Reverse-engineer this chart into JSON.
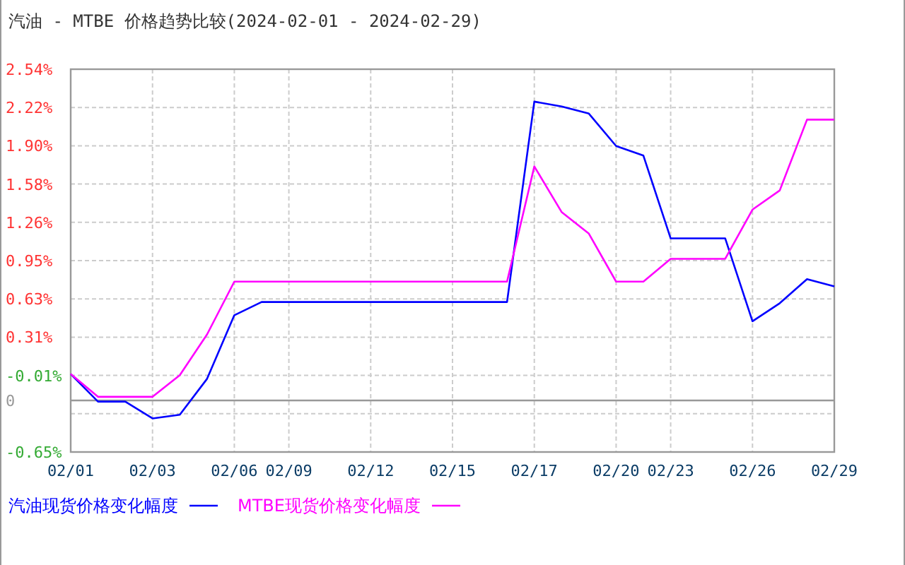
{
  "chart_data": {
    "type": "line",
    "title": "汽油 - MTBE 价格趋势比较(2024-02-01 - 2024-02-29)",
    "categories": [
      "02/01",
      null,
      null,
      "02/03",
      null,
      null,
      "02/06",
      null,
      "02/09",
      null,
      null,
      "02/12",
      null,
      null,
      "02/15",
      null,
      null,
      "02/17",
      null,
      null,
      "02/20",
      null,
      "02/23",
      null,
      null,
      "02/26",
      null,
      null,
      "02/29"
    ],
    "ylim": [
      -0.65,
      2.54
    ],
    "yticks": [
      {
        "value": -0.65,
        "label": "-0.65%"
      },
      {
        "value": -0.331,
        "label": null
      },
      {
        "value": -0.012,
        "label": "-0.01%"
      },
      {
        "value": 0.307,
        "label": "0.31%"
      },
      {
        "value": 0.626,
        "label": "0.63%"
      },
      {
        "value": 0.945,
        "label": "0.95%"
      },
      {
        "value": 1.264,
        "label": "1.26%"
      },
      {
        "value": 1.583,
        "label": "1.58%"
      },
      {
        "value": 1.902,
        "label": "1.90%"
      },
      {
        "value": 2.221,
        "label": "2.22%"
      },
      {
        "value": 2.54,
        "label": "2.54%"
      }
    ],
    "ref_lines": [
      {
        "axis": "y",
        "value": -0.22,
        "label": "0",
        "color": "#999999"
      }
    ],
    "grid": true,
    "legend": "bottom left",
    "series": [
      {
        "name": "汽油现货价格变化幅度",
        "color": "#0000ff",
        "values": [
          0,
          -0.23,
          -0.23,
          -0.37,
          -0.34,
          -0.04,
          0.49,
          0.6,
          0.6,
          0.6,
          0.6,
          0.6,
          0.6,
          0.6,
          0.6,
          0.6,
          0.6,
          2.27,
          2.23,
          2.17,
          1.9,
          1.82,
          1.13,
          1.13,
          1.13,
          0.44,
          0.59,
          0.79,
          0.73
        ]
      },
      {
        "name": "MTBE现货价格变化幅度",
        "color": "#ff00ff",
        "values": [
          0,
          -0.19,
          -0.19,
          -0.19,
          -0.01,
          0.33,
          0.77,
          0.77,
          0.77,
          0.77,
          0.77,
          0.77,
          0.77,
          0.77,
          0.77,
          0.77,
          0.77,
          1.73,
          1.35,
          1.17,
          0.77,
          0.77,
          0.96,
          0.96,
          0.96,
          1.37,
          1.53,
          2.12,
          2.12
        ]
      }
    ]
  }
}
